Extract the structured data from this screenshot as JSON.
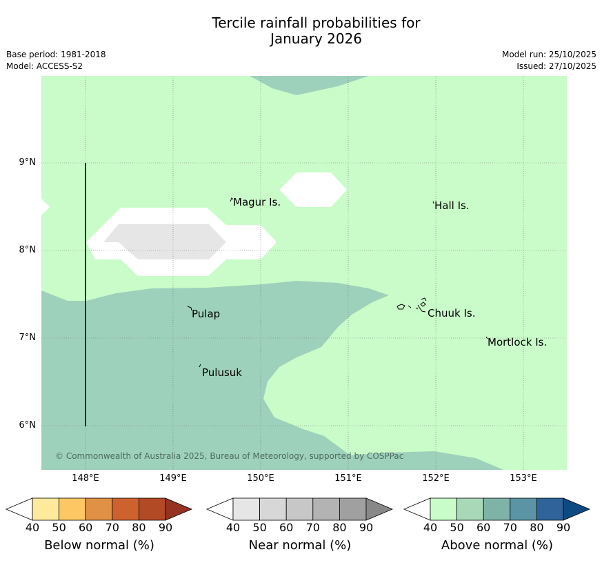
{
  "title_line1": "Tercile rainfall probabilities for",
  "title_line2": "January 2026",
  "base_period": "Base period: 1981-2018",
  "model": "Model: ACCESS-S2",
  "model_run": "Model run: 25/10/2025",
  "issued": "Issued: 27/10/2025",
  "copyright": "© Commonwealth of Australia 2025, Bureau of Meteorology, supported by COSPPac",
  "lat_ticks": [
    "9°N",
    "8°N",
    "7°N",
    "6°N"
  ],
  "lon_ticks": [
    "148°E",
    "149°E",
    "150°E",
    "151°E",
    "152°E",
    "153°E"
  ],
  "places": {
    "magur": "Magur Is.",
    "hall": "Hall Is.",
    "pulap": "Pulap",
    "chuuk": "Chuuk Is.",
    "mortlock": "Mortlock Is.",
    "pulusuk": "Pulusuk"
  },
  "legends": [
    {
      "label": "Below normal (%)",
      "ticks": [
        "40",
        "50",
        "60",
        "70",
        "80",
        "90"
      ],
      "colors": [
        "#ffffff",
        "#fee99d",
        "#fdc863",
        "#e09146",
        "#ce622f",
        "#b24a26",
        "#953221"
      ]
    },
    {
      "label": "Near normal (%)",
      "ticks": [
        "40",
        "50",
        "60",
        "70",
        "80",
        "90"
      ],
      "colors": [
        "#ffffff",
        "#e6e6e6",
        "#d7d7d7",
        "#c7c7c7",
        "#b3b3b3",
        "#a0a0a0",
        "#888888"
      ]
    },
    {
      "label": "Above normal (%)",
      "ticks": [
        "40",
        "50",
        "60",
        "70",
        "80",
        "90"
      ],
      "colors": [
        "#ffffff",
        "#c9fcc9",
        "#a8d8b8",
        "#80b3a8",
        "#5b94a4",
        "#2f6399",
        "#0e4a82"
      ]
    }
  ],
  "map_colors": {
    "above_40_50": "#c9fcc9",
    "above_50_60": "#9ed1bb",
    "near_40_50": "#ffffff",
    "near_50_60": "#e6e6e6"
  }
}
